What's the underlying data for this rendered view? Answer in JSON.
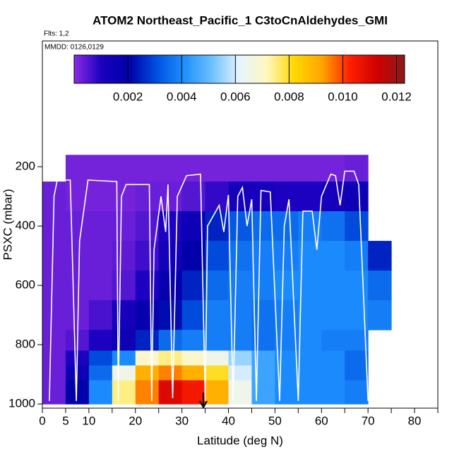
{
  "chart_data": {
    "type": "heatmap",
    "title": "ATOM2 Northeast_Pacific_1 C3toCnAldehydes_GMI",
    "subtitle": "Flts: 1,2",
    "annotation": "MMDD: 0126,0129",
    "xlabel": "Latitude (deg N)",
    "ylabel": "PSXC (mbar)",
    "xlim": [
      0,
      85
    ],
    "ylim": [
      1014,
      -224
    ],
    "xticks": [
      0,
      5,
      10,
      20,
      30,
      40,
      50,
      60,
      70,
      80
    ],
    "xminorticks": [
      15,
      25,
      35,
      45,
      55,
      65,
      75,
      85
    ],
    "yticks": [
      200,
      400,
      600,
      800,
      1000
    ],
    "zlim": [
      0,
      0.0123
    ],
    "zticks": [
      0.002,
      0.004,
      0.006,
      0.008,
      {
        "value": 0.01,
        "label": "0.010"
      },
      0.012
    ],
    "colorscale": [
      "#8a2be2",
      "#1a00c0",
      "#0000a8",
      "#0050e0",
      "#1e90ff",
      "#6cc0ff",
      "#e6f4ff",
      "#fff8c0",
      "#ffd700",
      "#ffa500",
      "#ff2000",
      "#d00000",
      "#8b1a1a"
    ],
    "x_edges": [
      0,
      5,
      10,
      15,
      20,
      25,
      30,
      35,
      40,
      45,
      50,
      55,
      60,
      65,
      70,
      75
    ],
    "y_edges": [
      160,
      250,
      350,
      450,
      550,
      650,
      750,
      820,
      870,
      920,
      1000
    ],
    "z": [
      [
        null,
        0.0002,
        0.0002,
        0.0002,
        0.0002,
        0.0002,
        0.0002,
        0.0002,
        0.0002,
        0.0002,
        0.0002,
        0.0002,
        0.0002,
        0.0003,
        null
      ],
      [
        0.0003,
        0.0002,
        0.0002,
        0.0002,
        0.0003,
        0.0003,
        0.0005,
        0.0008,
        0.0012,
        0.0012,
        0.001,
        0.001,
        0.0012,
        0.0015,
        null
      ],
      [
        0.0003,
        0.0003,
        0.0003,
        0.0003,
        0.0005,
        0.001,
        0.0015,
        0.0025,
        0.0032,
        0.0035,
        0.0035,
        0.0038,
        0.0036,
        0.003,
        null
      ],
      [
        0.0003,
        0.0003,
        0.0003,
        0.0004,
        0.0007,
        0.0013,
        0.002,
        0.003,
        0.0036,
        0.0038,
        0.0038,
        0.004,
        0.004,
        0.0038,
        0.0025
      ],
      [
        0.0003,
        0.0003,
        0.0003,
        0.0005,
        0.001,
        0.0018,
        0.0025,
        0.0035,
        0.0038,
        0.0038,
        0.004,
        0.004,
        0.004,
        0.004,
        0.0035
      ],
      [
        0.0003,
        0.0003,
        0.0006,
        0.0012,
        0.0018,
        0.0022,
        0.003,
        0.0038,
        0.0038,
        0.0036,
        0.0038,
        0.004,
        0.004,
        0.004,
        0.0038
      ],
      [
        0.0003,
        0.0005,
        0.001,
        0.0015,
        0.0025,
        0.0035,
        0.0038,
        0.0038,
        0.0038,
        0.0036,
        0.0038,
        0.004,
        0.0038,
        0.0038,
        null
      ],
      [
        0.0003,
        0.001,
        0.003,
        0.004,
        0.007,
        0.0075,
        0.007,
        0.0065,
        0.0055,
        0.0045,
        0.004,
        0.004,
        0.004,
        0.0035,
        null
      ],
      [
        0.0003,
        0.0015,
        0.0035,
        0.0065,
        0.009,
        0.0095,
        0.009,
        0.008,
        0.006,
        0.0045,
        0.004,
        0.004,
        0.004,
        0.0035,
        null
      ],
      [
        0.0003,
        0.002,
        0.004,
        0.0075,
        0.0095,
        0.011,
        0.0105,
        0.009,
        0.0065,
        0.0045,
        0.004,
        0.004,
        0.004,
        0.0038,
        null
      ]
    ],
    "track": {
      "color": "#ffffff",
      "x": [
        1.5,
        2.5,
        3.2,
        6,
        7.3,
        8,
        9.8,
        16,
        16.3,
        17,
        18,
        23,
        23.5,
        24,
        25.5,
        26.5,
        27,
        28,
        29,
        31,
        34,
        35,
        35.5,
        38,
        39,
        40,
        41,
        42,
        43,
        44,
        45,
        46,
        47,
        49,
        51,
        52,
        53,
        55,
        56,
        58,
        59,
        60,
        62,
        63,
        64,
        65,
        67,
        68,
        70
      ],
      "values": [
        990,
        300,
        245,
        245,
        990,
        450,
        245,
        250,
        990,
        300,
        260,
        260,
        990,
        480,
        300,
        420,
        260,
        980,
        300,
        230,
        225,
        990,
        400,
        330,
        420,
        295,
        990,
        300,
        270,
        400,
        310,
        990,
        280,
        285,
        990,
        400,
        310,
        990,
        350,
        350,
        480,
        300,
        225,
        230,
        330,
        215,
        215,
        260,
        990
      ]
    }
  }
}
